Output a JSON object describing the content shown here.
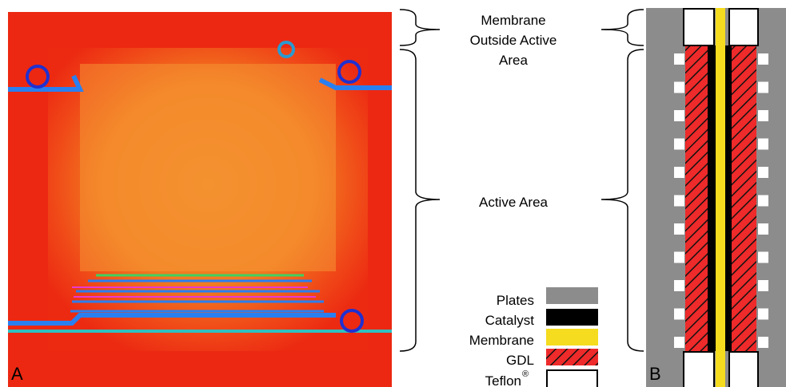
{
  "panels": {
    "a": "A",
    "b": "B"
  },
  "annotations": {
    "membrane_outside": [
      "Membrane",
      "Outside Active",
      "Area"
    ],
    "active_area": "Active Area"
  },
  "legend": [
    {
      "label": "Plates"
    },
    {
      "label": "Catalyst"
    },
    {
      "label": "Membrane"
    },
    {
      "label": "GDL"
    },
    {
      "label": "Teflon",
      "sup": "®"
    }
  ]
}
